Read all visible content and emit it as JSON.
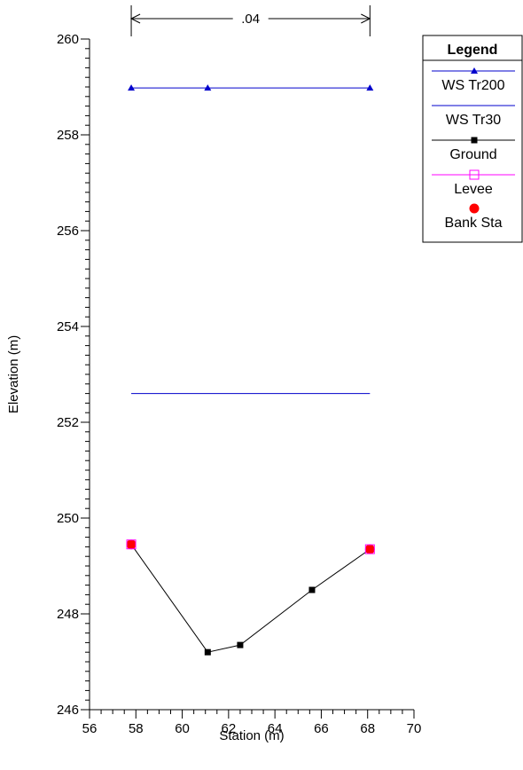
{
  "chart_data": {
    "type": "line",
    "xlabel": "Station (m)",
    "ylabel": "Elevation (m)",
    "xlim": [
      56,
      70
    ],
    "ylim": [
      246,
      260
    ],
    "x_ticks": [
      "56",
      "58",
      "60",
      "62",
      "64",
      "66",
      "68",
      "70"
    ],
    "y_ticks": [
      "246",
      "248",
      "250",
      "252",
      "254",
      "256",
      "258",
      "260"
    ],
    "legend": {
      "title": "Legend",
      "placement": "right",
      "entries": [
        "WS Tr200",
        "WS Tr30",
        "Ground",
        "Levee",
        "Bank Sta"
      ]
    },
    "annotation": {
      "label": ".04",
      "x_start": 57.8,
      "x_end": 68.1
    },
    "series": [
      {
        "name": "WS Tr200",
        "color": "#0000cc",
        "marker": "triangle",
        "x": [
          57.8,
          61.1,
          68.1
        ],
        "y": [
          258.98,
          258.98,
          258.98
        ]
      },
      {
        "name": "WS Tr30",
        "color": "#0000cc",
        "marker": "none",
        "x": [
          57.8,
          68.1
        ],
        "y": [
          252.6,
          252.6
        ]
      },
      {
        "name": "Ground",
        "color": "#000000",
        "marker": "square",
        "x": [
          57.8,
          61.1,
          62.5,
          65.6,
          68.1
        ],
        "y": [
          249.45,
          247.2,
          247.35,
          248.5,
          249.35
        ]
      },
      {
        "name": "Levee",
        "color": "#ff00ff",
        "marker": "open-square",
        "x": [
          57.8,
          68.1
        ],
        "y": [
          249.45,
          249.35
        ]
      },
      {
        "name": "Bank Sta",
        "color": "#ff0000",
        "marker": "circle",
        "x": [
          57.8,
          68.1
        ],
        "y": [
          249.45,
          249.35
        ]
      }
    ]
  }
}
